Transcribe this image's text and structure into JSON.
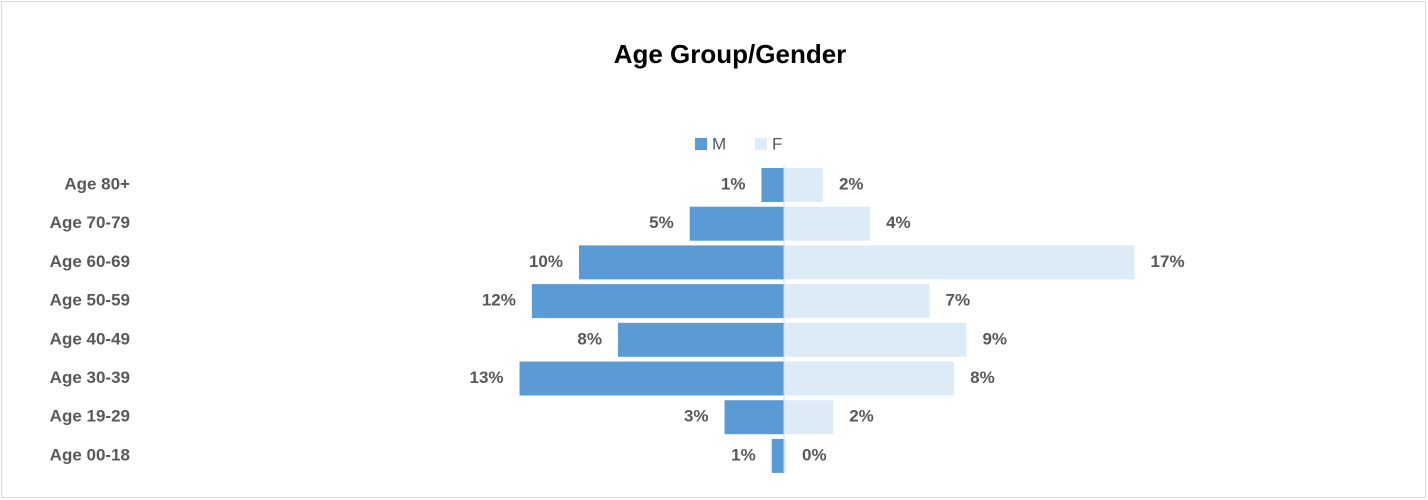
{
  "chart_data": {
    "type": "pyramid",
    "title": "Age Group/Gender",
    "categories": [
      "Age 80+",
      "Age 70-79",
      "Age 60-69",
      "Age 50-59",
      "Age 40-49",
      "Age 30-39",
      "Age 19-29",
      "Age 00-18"
    ],
    "series": [
      {
        "name": "M",
        "color": "#5b9bd5",
        "values": [
          1.1,
          4.6,
          10.0,
          12.3,
          8.1,
          12.9,
          2.9,
          0.6
        ],
        "value_labels": [
          "1%",
          "5%",
          "10%",
          "12%",
          "8%",
          "13%",
          "3%",
          "1%"
        ]
      },
      {
        "name": "F",
        "color": "#ddebf7",
        "values": [
          1.9,
          4.2,
          17.1,
          7.1,
          8.9,
          8.3,
          2.4,
          0.1
        ],
        "value_labels": [
          "2%",
          "4%",
          "17%",
          "7%",
          "9%",
          "8%",
          "2%",
          "0%"
        ]
      }
    ],
    "legend": "top"
  }
}
